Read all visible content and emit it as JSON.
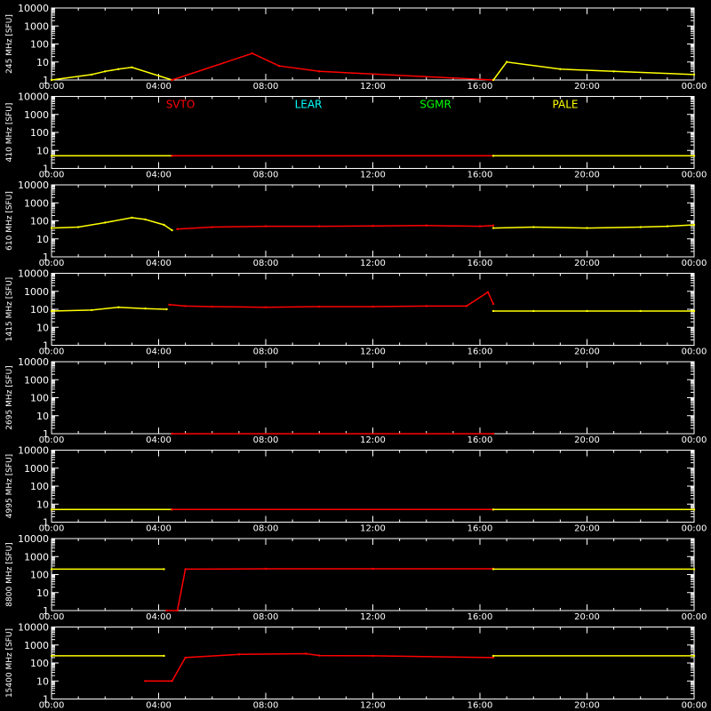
{
  "chart_data": {
    "type": "line",
    "y_scale": "log",
    "y_unit": "SFU",
    "ylim": [
      1,
      10000
    ],
    "y_ticks": [
      "1",
      "10",
      "100",
      "1000",
      "10000"
    ],
    "x_ticks": [
      "00:00",
      "04:00",
      "08:00",
      "12:00",
      "16:00",
      "20:00",
      "00:00"
    ],
    "xlim_hours": [
      0,
      24
    ],
    "legend": [
      {
        "label": "SVTO",
        "color": "#ff0000"
      },
      {
        "label": "LEAR",
        "color": "#00ffff"
      },
      {
        "label": "SGMR",
        "color": "#00ff00"
      },
      {
        "label": "PALE",
        "color": "#ffff00"
      }
    ],
    "station_intervals_hours": [
      {
        "station": "PALE",
        "color": "#ffff00",
        "start": 0,
        "end": 4.5
      },
      {
        "station": "SVTO",
        "color": "#ff0000",
        "start": 4.5,
        "end": 16.5
      },
      {
        "station": "PALE",
        "color": "#ffff00",
        "start": 16.5,
        "end": 24
      }
    ],
    "panels": [
      {
        "frequency": "245 MHz",
        "ylabel": "245 MHz [SFU]",
        "series": [
          {
            "station": "PALE",
            "color": "#ffff00",
            "x": [
              0,
              1.5,
              2.0,
              2.5,
              3.0,
              4.5
            ],
            "y": [
              1,
              2,
              3,
              4,
              5,
              1
            ]
          },
          {
            "station": "SVTO",
            "color": "#ff0000",
            "x": [
              4.5,
              7.5,
              8.5,
              10,
              16.5
            ],
            "y": [
              1,
              30,
              6,
              3,
              1
            ]
          },
          {
            "station": "PALE",
            "color": "#ffff00",
            "x": [
              16.5,
              17,
              19,
              21,
              24
            ],
            "y": [
              1,
              10,
              4,
              3,
              2
            ]
          }
        ]
      },
      {
        "frequency": "410 MHz",
        "ylabel": "410 MHz [SFU]",
        "series": [
          {
            "station": "PALE",
            "color": "#ffff00",
            "x": [
              0,
              4.5
            ],
            "y": [
              5,
              5
            ]
          },
          {
            "station": "SVTO",
            "color": "#ff0000",
            "x": [
              4.5,
              16.5
            ],
            "y": [
              5,
              5
            ]
          },
          {
            "station": "PALE",
            "color": "#ffff00",
            "x": [
              16.5,
              24
            ],
            "y": [
              5,
              5
            ]
          }
        ]
      },
      {
        "frequency": "610 MHz",
        "ylabel": "610 MHz [SFU]",
        "series": [
          {
            "station": "PALE",
            "color": "#ffff00",
            "x": [
              0,
              1,
              2,
              3,
              3.5,
              4.2,
              4.5
            ],
            "y": [
              40,
              45,
              80,
              150,
              120,
              60,
              30
            ]
          },
          {
            "station": "SVTO",
            "color": "#ff0000",
            "x": [
              4.7,
              6,
              8,
              10,
              12,
              14,
              16,
              16.5
            ],
            "y": [
              35,
              45,
              50,
              50,
              52,
              55,
              50,
              55
            ]
          },
          {
            "station": "PALE",
            "color": "#ffff00",
            "x": [
              16.5,
              18,
              20,
              22,
              23,
              24
            ],
            "y": [
              40,
              45,
              40,
              45,
              50,
              60
            ]
          }
        ]
      },
      {
        "frequency": "1415 MHz",
        "ylabel": "1415 MHz [SFU]",
        "series": [
          {
            "station": "PALE",
            "color": "#ffff00",
            "x": [
              0,
              1.5,
              2.5,
              3.5,
              4.3
            ],
            "y": [
              80,
              90,
              130,
              110,
              100
            ]
          },
          {
            "station": "SVTO",
            "color": "#ff0000",
            "x": [
              4.4,
              5,
              6,
              8,
              10,
              12,
              14,
              15.5,
              16.3,
              16.5
            ],
            "y": [
              180,
              150,
              140,
              130,
              140,
              140,
              150,
              150,
              900,
              200
            ]
          },
          {
            "station": "PALE",
            "color": "#ffff00",
            "x": [
              16.5,
              18,
              20,
              22,
              24
            ],
            "y": [
              80,
              80,
              80,
              80,
              80
            ]
          }
        ]
      },
      {
        "frequency": "2695 MHz",
        "ylabel": "2695 MHz [SFU]",
        "series": [
          {
            "station": "SVTO",
            "color": "#ff0000",
            "x": [
              4.5,
              16.5
            ],
            "y": [
              1,
              1
            ]
          }
        ]
      },
      {
        "frequency": "4995 MHz",
        "ylabel": "4995 MHz [SFU]",
        "series": [
          {
            "station": "PALE",
            "color": "#ffff00",
            "x": [
              0,
              4.5
            ],
            "y": [
              5,
              5
            ]
          },
          {
            "station": "SVTO",
            "color": "#ff0000",
            "x": [
              4.5,
              16.5
            ],
            "y": [
              5,
              5
            ]
          },
          {
            "station": "PALE",
            "color": "#ffff00",
            "x": [
              16.5,
              24
            ],
            "y": [
              5,
              5
            ]
          }
        ]
      },
      {
        "frequency": "8800 MHz",
        "ylabel": "8800 MHz [SFU]",
        "series": [
          {
            "station": "PALE",
            "color": "#ffff00",
            "x": [
              0,
              4.2
            ],
            "y": [
              200,
              200
            ]
          },
          {
            "station": "SVTO",
            "color": "#ff0000",
            "x": [
              4.3,
              4.7,
              5,
              8,
              12,
              16.5
            ],
            "y": [
              1,
              1,
              200,
              210,
              210,
              210
            ]
          },
          {
            "station": "PALE",
            "color": "#ffff00",
            "x": [
              16.5,
              24
            ],
            "y": [
              200,
              200
            ]
          }
        ]
      },
      {
        "frequency": "15400 MHz",
        "ylabel": "15400 MHz [SFU]",
        "series": [
          {
            "station": "PALE",
            "color": "#ffff00",
            "x": [
              0,
              4.2
            ],
            "y": [
              250,
              250
            ]
          },
          {
            "station": "SVTO",
            "color": "#ff0000",
            "x": [
              3.5,
              4.5,
              5,
              7,
              9.5,
              10,
              12,
              16.5
            ],
            "y": [
              10,
              10,
              200,
              300,
              330,
              260,
              250,
              200
            ]
          },
          {
            "station": "PALE",
            "color": "#ffff00",
            "x": [
              16.5,
              24
            ],
            "y": [
              250,
              250
            ]
          }
        ]
      }
    ]
  }
}
